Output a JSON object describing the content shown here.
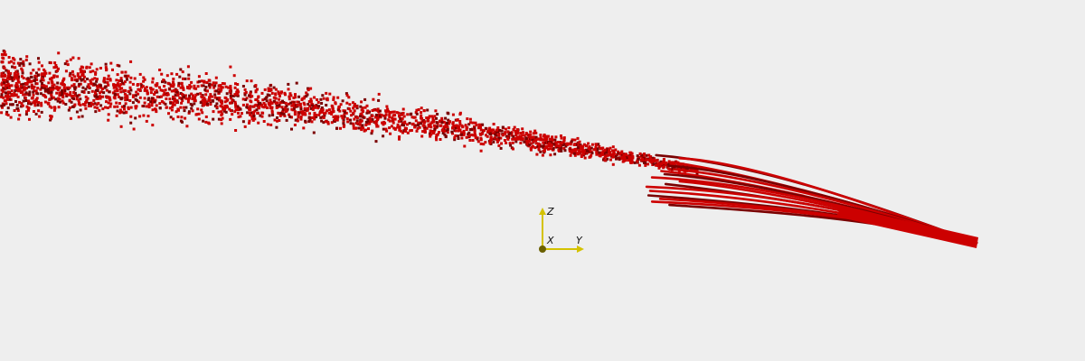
{
  "viewport": {
    "background_color": "#eeeeee"
  },
  "point_cloud": {
    "point_color": "#cc0000",
    "point_shadow_color": "#7a0000",
    "description_shape": "dense spray of particles that converges into a narrow bundle of streamlines"
  },
  "orientation_axes": {
    "color": "#d4c200",
    "origin_color": "#6b6000",
    "x_label": "X",
    "y_label": "Y",
    "z_label": "Z"
  }
}
